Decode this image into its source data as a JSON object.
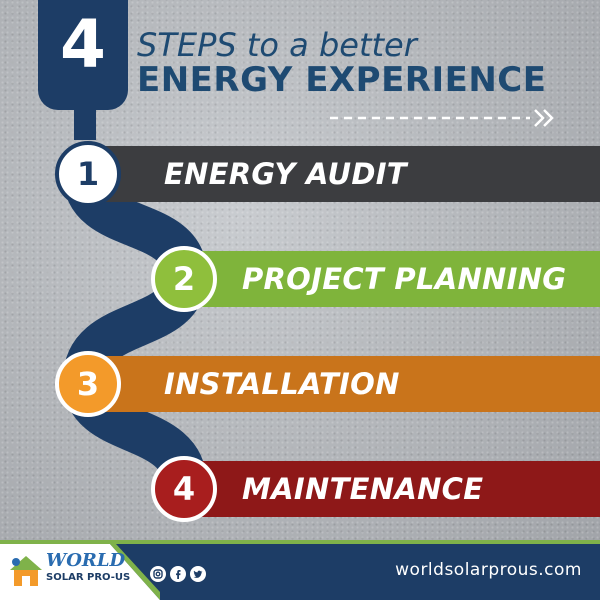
{
  "header": {
    "number": "4",
    "line1": "STEPS to a better",
    "line2": "ENERGY EXPERIENCE"
  },
  "steps": [
    {
      "number": "1",
      "label": "ENERGY AUDIT",
      "color": "#3c3d40",
      "circle_color": "#ffffff",
      "number_color": "#1d3d66"
    },
    {
      "number": "2",
      "label": "PROJECT PLANNING",
      "color": "#7fb43b",
      "circle_color": "#8fbf3c"
    },
    {
      "number": "3",
      "label": "INSTALLATION",
      "color": "#c9741b",
      "circle_color": "#f39a2a"
    },
    {
      "number": "4",
      "label": "MAINTENANCE",
      "color": "#8e1818",
      "circle_color": "#a81e1e"
    }
  ],
  "footer": {
    "logo_title": "WORLD",
    "logo_subtitle": "SOLAR PRO-US",
    "social_icons": [
      "instagram-icon",
      "facebook-icon",
      "twitter-icon"
    ],
    "website": "worldsolarprous.com"
  },
  "colors": {
    "navy": "#1d3d66",
    "green": "#7fb24a"
  }
}
